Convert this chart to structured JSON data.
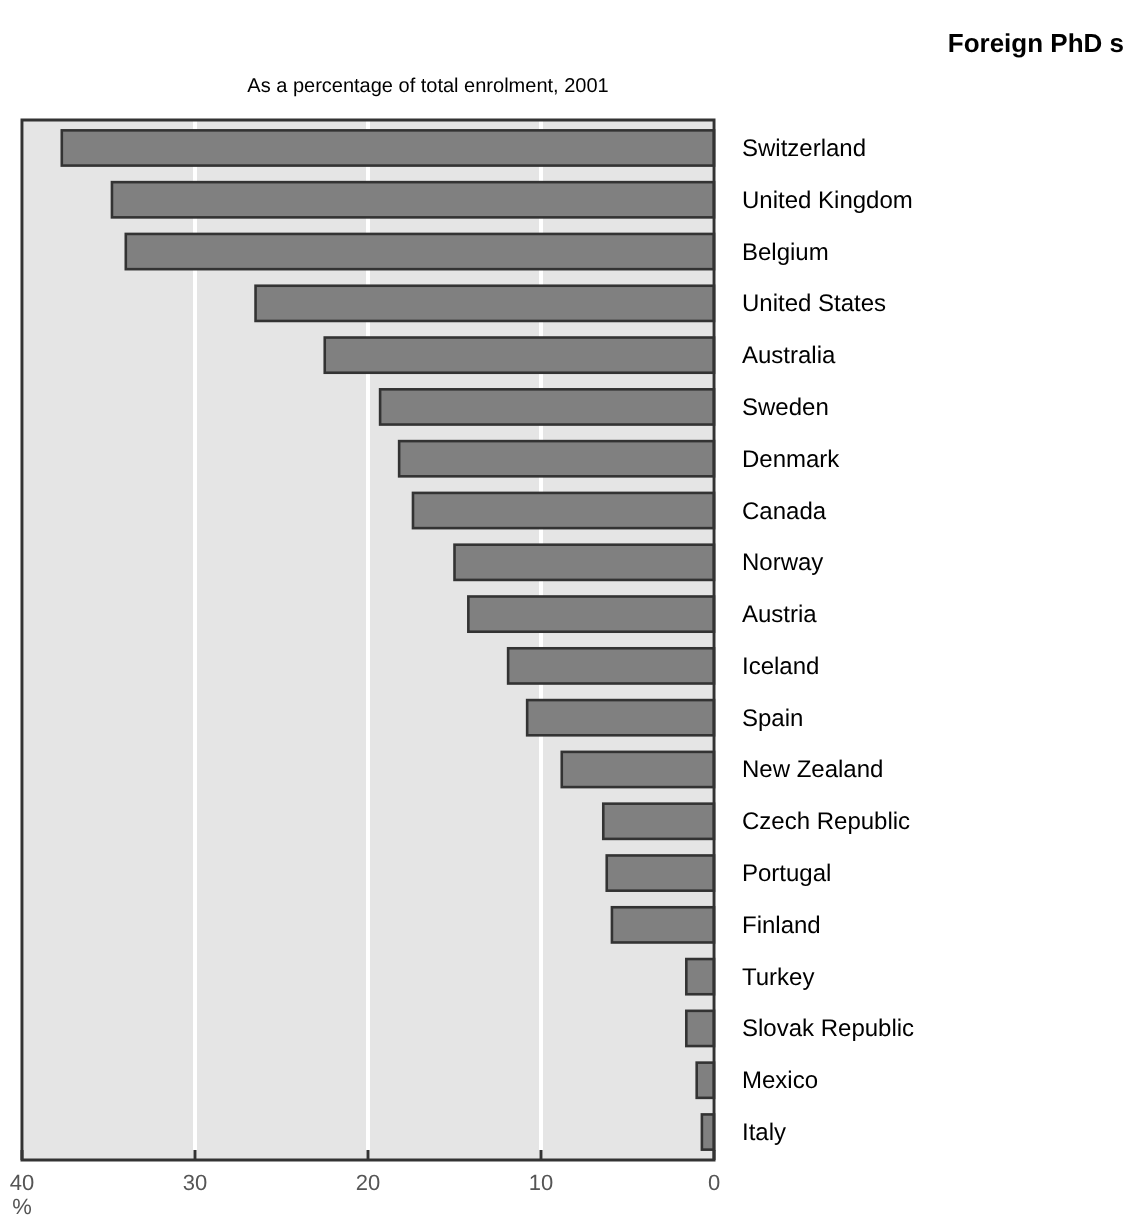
{
  "chart_data": {
    "type": "bar",
    "orientation": "horizontal",
    "title": "Foreign PhD s",
    "subtitle": "As a percentage of total enrolment, 2001",
    "xlabel": "%",
    "categories": [
      "Switzerland",
      "United Kingdom",
      "Belgium",
      "United States",
      "Australia",
      "Sweden",
      "Denmark",
      "Canada",
      "Norway",
      "Austria",
      "Iceland",
      "Spain",
      "New Zealand",
      "Czech Republic",
      "Portugal",
      "Finland",
      "Turkey",
      "Slovak Republic",
      "Mexico",
      "Italy"
    ],
    "values": [
      37.7,
      34.8,
      34.0,
      26.5,
      22.5,
      19.3,
      18.2,
      17.4,
      15.0,
      14.2,
      11.9,
      10.8,
      8.8,
      6.4,
      6.2,
      5.9,
      1.6,
      1.6,
      1.0,
      0.7
    ],
    "color": "#808080",
    "xlim": [
      40,
      0
    ],
    "xticks": [
      40,
      30,
      20,
      10,
      0
    ],
    "grid": "x"
  }
}
